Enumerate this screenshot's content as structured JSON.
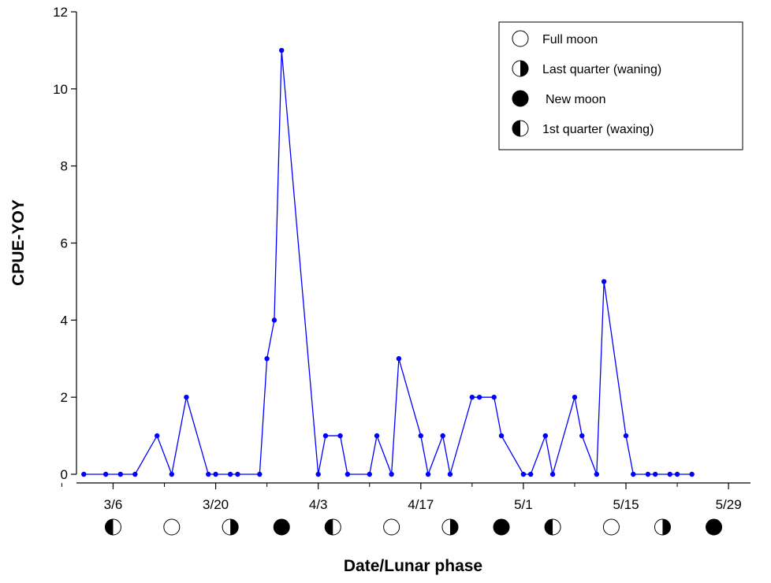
{
  "chart_data": {
    "type": "line",
    "xlabel": "Date/Lunar phase",
    "ylabel": "CPUE-YOY",
    "ylim": [
      0,
      12
    ],
    "yticks": [
      "0",
      "2",
      "4",
      "6",
      "8",
      "10",
      "12"
    ],
    "x_axis": {
      "range_days": [
        -19,
        73
      ],
      "tick_dates": [
        "3/6",
        "3/20",
        "4/3",
        "4/17",
        "5/1",
        "5/15",
        "5/29"
      ]
    },
    "series": [
      {
        "color": "#0000ff",
        "x": [
          "3/2",
          "3/5",
          "3/7",
          "3/9",
          "3/12",
          "3/14",
          "3/16",
          "3/19",
          "3/20",
          "3/22",
          "3/23",
          "3/26",
          "3/27",
          "3/28",
          "3/29",
          "4/3",
          "4/4",
          "4/6",
          "4/7",
          "4/10",
          "4/11",
          "4/13",
          "4/14",
          "4/17",
          "4/18",
          "4/20",
          "4/21",
          "4/24",
          "4/25",
          "4/27",
          "4/28",
          "5/1",
          "5/2",
          "5/4",
          "5/5",
          "5/8",
          "5/9",
          "5/11",
          "5/12",
          "5/15",
          "5/16",
          "5/18",
          "5/19",
          "5/21",
          "5/22",
          "5/24"
        ],
        "values": [
          0,
          0,
          0,
          0,
          1,
          0,
          2,
          0,
          0,
          0,
          0,
          0,
          3,
          4,
          11,
          0,
          1,
          1,
          0,
          0,
          1,
          0,
          3,
          1,
          0,
          1,
          0,
          2,
          2,
          2,
          1,
          0,
          0,
          1,
          0,
          2,
          1,
          0,
          5,
          1,
          0,
          0,
          0,
          0,
          0,
          0
        ]
      }
    ],
    "lunar_phases": [
      {
        "date": "3/6",
        "phase": "1st quarter"
      },
      {
        "date": "3/14",
        "phase": "full"
      },
      {
        "date": "3/22",
        "phase": "last quarter"
      },
      {
        "date": "3/29",
        "phase": "new"
      },
      {
        "date": "4/5",
        "phase": "1st quarter"
      },
      {
        "date": "4/13",
        "phase": "full"
      },
      {
        "date": "4/21",
        "phase": "last quarter"
      },
      {
        "date": "4/28",
        "phase": "new"
      },
      {
        "date": "5/5",
        "phase": "1st quarter"
      },
      {
        "date": "5/13",
        "phase": "full"
      },
      {
        "date": "5/20",
        "phase": "last quarter"
      },
      {
        "date": "5/27",
        "phase": "new"
      }
    ],
    "legend": {
      "placement": "top-right",
      "items": [
        {
          "phase": "full",
          "label": "Full moon"
        },
        {
          "phase": "last quarter",
          "label": "Last quarter (waning)"
        },
        {
          "phase": "new",
          "label": "New moon"
        },
        {
          "phase": "1st quarter",
          "label": "1st quarter (waxing)"
        }
      ]
    }
  }
}
